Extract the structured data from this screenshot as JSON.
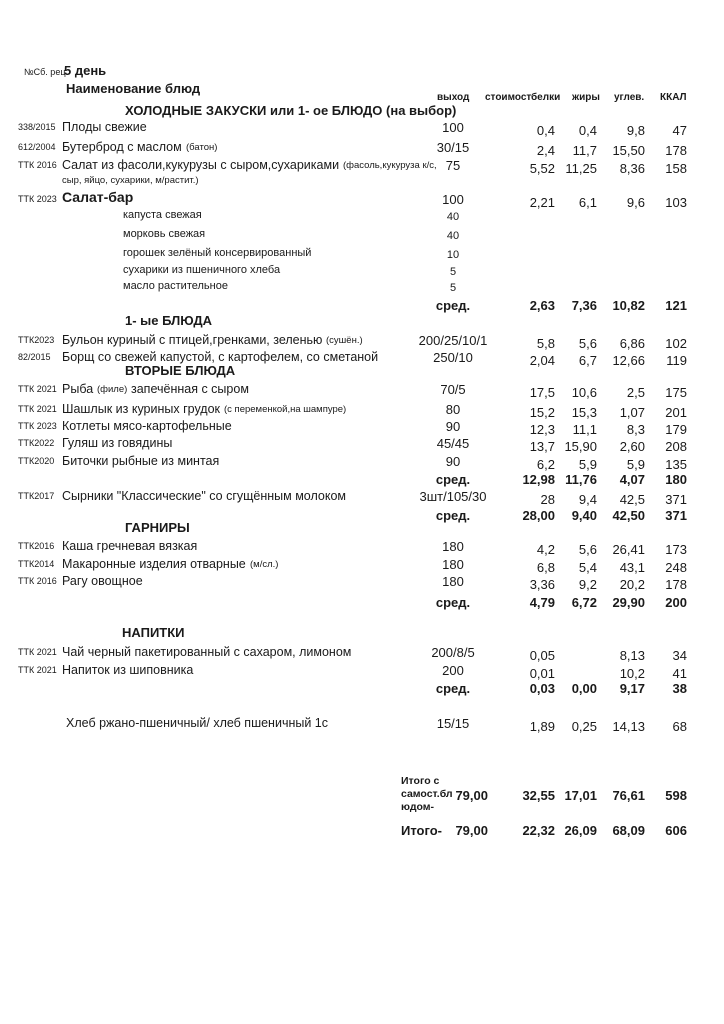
{
  "header": {
    "recipe_label": "№Сб. рец",
    "day": "5 день",
    "name_header": "Наименование  блюд",
    "columns": [
      "выход",
      "стоимост",
      "белки",
      "жиры",
      "углев.",
      "ККАЛ"
    ]
  },
  "rows": [
    {
      "type": "section",
      "text": "ХОЛОДНЫЕ  ЗАКУСКИ  или 1- ое БЛЮДО (на выбор)"
    },
    {
      "type": "item",
      "code": "338/2015",
      "name": "Плоды свежие",
      "yield": "100",
      "b": "0,4",
      "f": "0,4",
      "c": "9,8",
      "k": "47"
    },
    {
      "type": "item",
      "code": "612/2004",
      "name": "Бутерброд с маслом",
      "note": "(батон)",
      "yield": "30/15",
      "b": "2,4",
      "f": "11,7",
      "c": "15,50",
      "k": "178"
    },
    {
      "type": "item",
      "code": "ТТК 2016",
      "name": "Салат из фасоли,кукурузы с сыром,сухариками",
      "note": "(фасоль,кукуруза к/с,",
      "yield": "75",
      "b": "5,52",
      "f": "11,25",
      "c": "8,36",
      "k": "158"
    },
    {
      "type": "cont",
      "text": "сыр, яйцо, сухарики, м/растит.)"
    },
    {
      "type": "item",
      "code": "ТТК 2023",
      "name": "Салат-бар",
      "big": true,
      "yield": "100",
      "b": "2,21",
      "f": "6,1",
      "c": "9,6",
      "k": "103"
    },
    {
      "type": "sub",
      "name": "капуста свежая",
      "yield": "40"
    },
    {
      "type": "sub",
      "name": "морковь свежая",
      "yield": "40"
    },
    {
      "type": "sub",
      "name": "горошек зелёный консервированный",
      "yield": "10"
    },
    {
      "type": "sub",
      "name": "сухарики из пшеничного хлеба",
      "yield": "5"
    },
    {
      "type": "sub",
      "name": "масло растительное",
      "yield": "5"
    },
    {
      "type": "avg",
      "label": "сред.",
      "b": "2,63",
      "f": "7,36",
      "c": "10,82",
      "k": "121"
    },
    {
      "type": "section",
      "text": "1- ые БЛЮДА"
    },
    {
      "type": "item",
      "code": "ТТК2023",
      "name": "Бульон куриный с птицей,гренками, зеленью",
      "note": "(сушён.)",
      "yield": "200/25/10/1",
      "b": "5,8",
      "f": "5,6",
      "c": "6,86",
      "k": "102"
    },
    {
      "type": "item",
      "code": "82/2015",
      "name": "Борщ со свежей капустой, с картофелем, со сметаной",
      "yield": "250/10",
      "b": "2,04",
      "f": "6,7",
      "c": "12,66",
      "k": "119"
    },
    {
      "type": "section",
      "text": "ВТОРЫЕ  БЛЮДА"
    },
    {
      "type": "item",
      "code": "ТТК 2021",
      "name": "Рыба",
      "note": "(филе)",
      "name2": "запечённая с сыром",
      "yield": "70/5",
      "b": "17,5",
      "f": "10,6",
      "c": "2,5",
      "k": "175"
    },
    {
      "type": "item",
      "code": "ТТК 2021",
      "name": "Шашлык из куриных грудок",
      "note": "(с переменкой,на шампуре)",
      "yield": "80",
      "b": "15,2",
      "f": "15,3",
      "c": "1,07",
      "k": "201"
    },
    {
      "type": "item",
      "code": "ТТК 2023",
      "name": "Котлеты  мясо-картофельные",
      "yield": "90",
      "b": "12,3",
      "f": "11,1",
      "c": "8,3",
      "k": "179"
    },
    {
      "type": "item",
      "code": "ТТК2022",
      "name": "Гуляш из говядины",
      "yield": "45/45",
      "b": "13,7",
      "f": "15,90",
      "c": "2,60",
      "k": "208"
    },
    {
      "type": "item",
      "code": "ТТК2020",
      "name": "Биточки рыбные из минтая",
      "yield": "90",
      "b": "6,2",
      "f": "5,9",
      "c": "5,9",
      "k": "135"
    },
    {
      "type": "avg",
      "label": "сред.",
      "b": "12,98",
      "f": "11,76",
      "c": "4,07",
      "k": "180"
    },
    {
      "type": "item",
      "code": "ТТК2017",
      "name": "Сырники \"Классические\" со сгущённым молоком",
      "yield": "3шт/105/30",
      "b": "28",
      "f": "9,4",
      "c": "42,5",
      "k": "371"
    },
    {
      "type": "avg",
      "label": "сред.",
      "b": "28,00",
      "f": "9,40",
      "c": "42,50",
      "k": "371"
    },
    {
      "type": "section",
      "text": "ГАРНИРЫ"
    },
    {
      "type": "item",
      "code": "ТТК2016",
      "name": "Каша гречневая вязкая",
      "yield": "180",
      "b": "4,2",
      "f": "5,6",
      "c": "26,41",
      "k": "173"
    },
    {
      "type": "item",
      "code": "ТТК2014",
      "name": "Макаронные изделия отварные",
      "note": "(м/сл.)",
      "yield": "180",
      "b": "6,8",
      "f": "5,4",
      "c": "43,1",
      "k": "248"
    },
    {
      "type": "item",
      "code": "ТТК 2016",
      "name": "Рагу овощное",
      "yield": "180",
      "b": "3,36",
      "f": "9,2",
      "c": "20,2",
      "k": "178"
    },
    {
      "type": "avg",
      "label": "сред.",
      "b": "4,79",
      "f": "6,72",
      "c": "29,90",
      "k": "200"
    },
    {
      "type": "section",
      "text": "НАПИТКИ"
    },
    {
      "type": "item",
      "code": "ТТК 2021",
      "name": "Чай черный пакетированный с сахаром, лимоном",
      "yield": "200/8/5",
      "b": "0,05",
      "f": "",
      "c": "8,13",
      "k": "34"
    },
    {
      "type": "item",
      "code": "ТТК 2021",
      "name": "Напиток из шиповника",
      "yield": "200",
      "b": "0,01",
      "f": "",
      "c": "10,2",
      "k": "41"
    },
    {
      "type": "avg",
      "label": "сред.",
      "b": "0,03",
      "f": "0,00",
      "c": "9,17",
      "k": "38"
    },
    {
      "type": "item",
      "code": "",
      "name": "Хлеб ржано-пшеничный/ хлеб пшеничный 1с",
      "yield": "15/15",
      "b": "1,89",
      "f": "0,25",
      "c": "14,13",
      "k": "68"
    }
  ],
  "totals": [
    {
      "label": "Итого с самост.бл юдом-",
      "cost": "79,00",
      "b": "32,55",
      "f": "17,01",
      "c": "76,61",
      "k": "598"
    },
    {
      "label": "Итого-",
      "cost": "79,00",
      "b": "22,32",
      "f": "26,09",
      "c": "68,09",
      "k": "606"
    }
  ]
}
